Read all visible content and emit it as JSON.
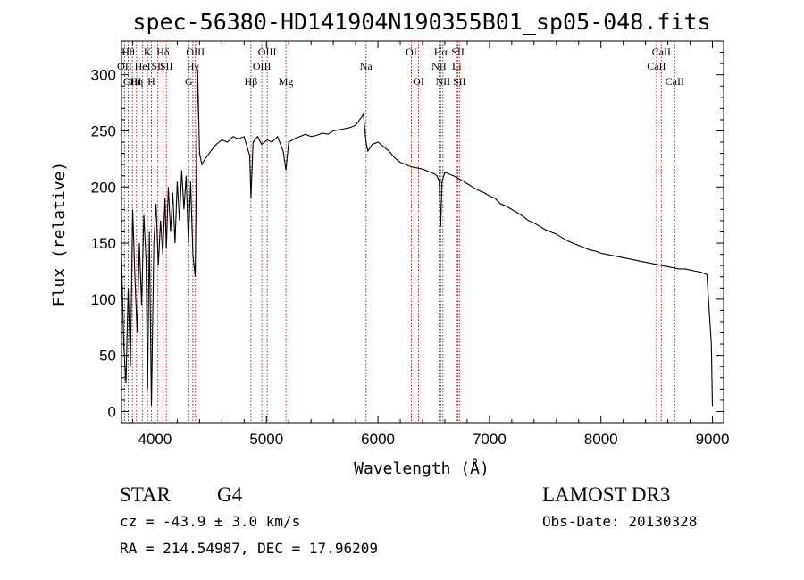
{
  "chart_data": {
    "type": "line",
    "title": "spec-56380-HD141904N190355B01_sp05-048.fits",
    "xlabel": "Wavelength (Å)",
    "ylabel": "Flux (relative)",
    "xlim": [
      3700,
      9100
    ],
    "ylim": [
      -10,
      330
    ],
    "xticks": [
      4000,
      5000,
      6000,
      7000,
      8000,
      9000
    ],
    "yticks": [
      0,
      50,
      100,
      150,
      200,
      250,
      300
    ],
    "series": [
      {
        "name": "flux",
        "x": [
          3700,
          3720,
          3740,
          3760,
          3780,
          3800,
          3820,
          3840,
          3860,
          3880,
          3900,
          3920,
          3934,
          3950,
          3968,
          3990,
          4010,
          4030,
          4050,
          4070,
          4090,
          4102,
          4120,
          4140,
          4160,
          4180,
          4200,
          4220,
          4240,
          4260,
          4280,
          4300,
          4320,
          4340,
          4361,
          4383,
          4400,
          4420,
          4450,
          4500,
          4550,
          4600,
          4650,
          4700,
          4750,
          4800,
          4850,
          4861,
          4880,
          4920,
          4957,
          5007,
          5050,
          5100,
          5150,
          5175,
          5200,
          5250,
          5300,
          5350,
          5400,
          5450,
          5500,
          5550,
          5600,
          5650,
          5700,
          5750,
          5800,
          5850,
          5870,
          5893,
          5910,
          5950,
          6000,
          6050,
          6100,
          6150,
          6200,
          6250,
          6300,
          6350,
          6400,
          6450,
          6500,
          6530,
          6550,
          6563,
          6575,
          6600,
          6650,
          6700,
          6750,
          6800,
          6850,
          6900,
          6950,
          7000,
          7050,
          7100,
          7150,
          7200,
          7250,
          7300,
          7350,
          7400,
          7450,
          7500,
          7550,
          7600,
          7650,
          7700,
          7750,
          7800,
          7850,
          7900,
          7950,
          8000,
          8050,
          8100,
          8150,
          8200,
          8250,
          8300,
          8350,
          8400,
          8450,
          8500,
          8550,
          8600,
          8650,
          8700,
          8750,
          8800,
          8850,
          8900,
          8950,
          8990,
          9000
        ],
        "y": [
          140,
          60,
          25,
          110,
          40,
          180,
          120,
          70,
          150,
          95,
          175,
          135,
          20,
          160,
          5,
          150,
          185,
          130,
          170,
          140,
          190,
          145,
          200,
          160,
          195,
          150,
          205,
          170,
          215,
          180,
          210,
          150,
          205,
          140,
          120,
          305,
          230,
          220,
          225,
          232,
          238,
          242,
          240,
          245,
          243,
          245,
          228,
          190,
          240,
          245,
          238,
          242,
          240,
          245,
          232,
          215,
          240,
          243,
          245,
          247,
          245,
          246,
          248,
          247,
          250,
          251,
          252,
          253,
          255,
          262,
          265,
          240,
          232,
          238,
          240,
          236,
          232,
          226,
          222,
          220,
          218,
          217,
          216,
          214,
          212,
          210,
          205,
          165,
          205,
          213,
          211,
          209,
          206,
          203,
          200,
          197,
          195,
          192,
          190,
          185,
          183,
          180,
          177,
          174,
          170,
          168,
          165,
          162,
          160,
          158,
          155,
          152,
          150,
          148,
          146,
          144,
          143,
          141,
          140,
          139,
          138,
          137,
          136,
          135,
          134,
          133,
          132,
          131,
          130,
          129,
          128,
          127,
          127,
          126,
          125,
          124,
          122,
          60,
          5
        ]
      }
    ],
    "lines": [
      {
        "wl": 3727,
        "label": "OII",
        "row": 2
      },
      {
        "wl": 3760,
        "label": "Hθ",
        "row": 1
      },
      {
        "wl": 3798,
        "label": "OIII",
        "row": 3
      },
      {
        "wl": 3835,
        "label": "Hη",
        "row": 3
      },
      {
        "wl": 3889,
        "label": "HeI",
        "row": 2
      },
      {
        "wl": 3934,
        "label": "K",
        "row": 1
      },
      {
        "wl": 3968,
        "label": "H",
        "row": 3
      },
      {
        "wl": 4026,
        "label": "SII",
        "row": 2
      },
      {
        "wl": 4072,
        "label": "Hδ",
        "row": 1
      },
      {
        "wl": 4102,
        "label": "SII",
        "row": 2
      },
      {
        "wl": 4304,
        "label": "G",
        "row": 3
      },
      {
        "wl": 4340,
        "label": "Hγ",
        "row": 2
      },
      {
        "wl": 4363,
        "label": "OIII",
        "row": 1
      },
      {
        "wl": 4861,
        "label": "Hβ",
        "row": 3
      },
      {
        "wl": 4959,
        "label": "OIII",
        "row": 2
      },
      {
        "wl": 5007,
        "label": "OIII",
        "row": 1
      },
      {
        "wl": 5175,
        "label": "Mg",
        "row": 3
      },
      {
        "wl": 5893,
        "label": "Na",
        "row": 2
      },
      {
        "wl": 6300,
        "label": "OI",
        "row": 1
      },
      {
        "wl": 6364,
        "label": "OI",
        "row": 3
      },
      {
        "wl": 6548,
        "label": "NII",
        "row": 2
      },
      {
        "wl": 6563,
        "label": "Hα",
        "row": 1
      },
      {
        "wl": 6583,
        "label": "NII",
        "row": 3
      },
      {
        "wl": 6707,
        "label": "Li",
        "row": 2
      },
      {
        "wl": 6717,
        "label": "SII",
        "row": 1
      },
      {
        "wl": 6731,
        "label": "SII",
        "row": 3
      },
      {
        "wl": 8498,
        "label": "CaII",
        "row": 2
      },
      {
        "wl": 8542,
        "label": "CaII",
        "row": 1
      },
      {
        "wl": 8662,
        "label": "CaII",
        "row": 3
      }
    ]
  },
  "info": {
    "object_class": "STAR",
    "subclass": "G4",
    "survey": "LAMOST DR3",
    "cz": "cz = -43.9 ± 3.0 km/s",
    "obs_date": "Obs-Date: 20130328",
    "coords": "RA = 214.54987, DEC =  17.96209"
  },
  "colors": {
    "line_marker": "#b22222",
    "spectrum": "#000000"
  }
}
